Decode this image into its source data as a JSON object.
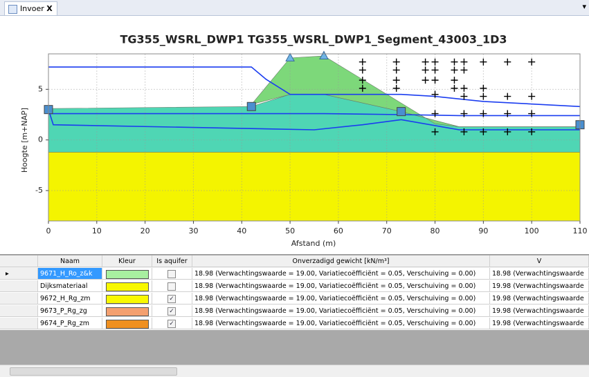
{
  "tab": {
    "label": "Invoer",
    "close": "X",
    "menu": "▾"
  },
  "chart_data": {
    "type": "cross-section",
    "title": "TG355_WSRL_DWP1 TG355_WSRL_DWP1_Segment_43003_1D3",
    "xlabel": "Afstand (m)",
    "ylabel": "Hoogte [m+NAP]",
    "xlim": [
      0,
      110
    ],
    "ylim": [
      -8,
      8.5
    ],
    "xticks": [
      0,
      10,
      20,
      30,
      40,
      50,
      60,
      70,
      80,
      90,
      100,
      110
    ],
    "yticks": [
      -5,
      0,
      5
    ],
    "grid": true,
    "layers": [
      {
        "color": "#f4f400",
        "x": [
          0,
          110,
          110,
          0
        ],
        "y": [
          -8,
          -8,
          -1.2,
          -1.2
        ]
      },
      {
        "color": "#4fd6b4",
        "x": [
          0,
          42,
          50,
          57,
          73,
          85,
          110,
          110,
          0
        ],
        "y": [
          3.1,
          3.3,
          4.5,
          4.5,
          2.8,
          1.3,
          1.3,
          -1.2,
          -1.2
        ]
      },
      {
        "color": "#7dd87a",
        "x": [
          42,
          50,
          57,
          80,
          85,
          110,
          110,
          85,
          73,
          57,
          50,
          42
        ],
        "y": [
          3.5,
          8.1,
          8.3,
          1.6,
          1.3,
          1.3,
          1.3,
          1.3,
          2.8,
          4.5,
          4.5,
          3.5
        ]
      }
    ],
    "lines": [
      {
        "color": "#1a3cf0",
        "x": [
          0,
          42,
          45,
          50,
          73,
          80,
          90,
          110
        ],
        "y": [
          7.2,
          7.2,
          6,
          4.5,
          4.5,
          4.3,
          3.8,
          3.3
        ]
      },
      {
        "color": "#1a3cf0",
        "x": [
          0,
          42,
          57,
          73,
          85,
          110
        ],
        "y": [
          2.6,
          2.6,
          2.6,
          2.5,
          2.4,
          2.4
        ]
      },
      {
        "color": "#1a3cf0",
        "x": [
          0,
          1,
          55,
          65,
          73,
          85,
          110
        ],
        "y": [
          3,
          1.5,
          1,
          1.5,
          2,
          1,
          1
        ]
      }
    ],
    "triangles": {
      "color": "#6fb4e4",
      "x": [
        50,
        57
      ],
      "y": [
        8.2,
        8.4
      ]
    },
    "squares": {
      "color": "#4a8fd0",
      "x": [
        0,
        42,
        73,
        110
      ],
      "y": [
        3,
        3.3,
        2.8,
        1.5
      ]
    },
    "points": {
      "color": "#000000",
      "x": [
        65,
        65,
        65,
        65,
        72,
        72,
        72,
        72,
        78,
        78,
        78,
        80,
        80,
        80,
        80,
        80,
        80,
        84,
        84,
        84,
        84,
        86,
        86,
        86,
        86,
        86,
        86,
        90,
        90,
        90,
        90,
        90,
        95,
        95,
        95,
        95,
        100,
        100,
        100,
        100
      ],
      "y": [
        7.7,
        6.9,
        5.9,
        5.1,
        7.7,
        6.9,
        5.9,
        5.1,
        7.7,
        6.9,
        5.9,
        7.7,
        6.9,
        5.9,
        4.5,
        2.6,
        0.8,
        7.7,
        6.9,
        5.9,
        5.1,
        7.7,
        6.9,
        5.1,
        4.3,
        2.6,
        0.8,
        7.7,
        5.1,
        4.3,
        2.6,
        0.8,
        7.7,
        4.3,
        2.6,
        0.8,
        7.7,
        4.3,
        2.6,
        0.8
      ]
    }
  },
  "table": {
    "headers": [
      "Naam",
      "Kleur",
      "Is aquifer",
      "Onverzadigd gewicht [kN/m³]",
      "V"
    ],
    "rows": [
      {
        "name": "9671_H_Ro_z&k",
        "color": "#a8f0a0",
        "aquifer": false,
        "weight": "18.98 (Verwachtingswaarde = 19.00, Variatiecoëfficiënt = 0.05, Verschuiving = 0.00)",
        "next": "18.98 (Verwachtingswaarde"
      },
      {
        "name": "Dijksmateriaal",
        "color": "#f8f800",
        "aquifer": false,
        "weight": "18.98 (Verwachtingswaarde = 19.00, Variatiecoëfficiënt = 0.05, Verschuiving = 0.00)",
        "next": "19.98 (Verwachtingswaarde"
      },
      {
        "name": "9672_H_Rg_zm",
        "color": "#f8f800",
        "aquifer": true,
        "weight": "18.98 (Verwachtingswaarde = 19.00, Variatiecoëfficiënt = 0.05, Verschuiving = 0.00)",
        "next": "19.98 (Verwachtingswaarde"
      },
      {
        "name": "9673_P_Rg_zg",
        "color": "#f4a070",
        "aquifer": true,
        "weight": "18.98 (Verwachtingswaarde = 19.00, Variatiecoëfficiënt = 0.05, Verschuiving = 0.00)",
        "next": "19.98 (Verwachtingswaarde"
      },
      {
        "name": "9674_P_Rg_zm",
        "color": "#f09020",
        "aquifer": true,
        "weight": "18.98 (Verwachtingswaarde = 19.00, Variatiecoëfficiënt = 0.05, Verschuiving = 0.00)",
        "next": "19.98 (Verwachtingswaarde"
      }
    ]
  }
}
